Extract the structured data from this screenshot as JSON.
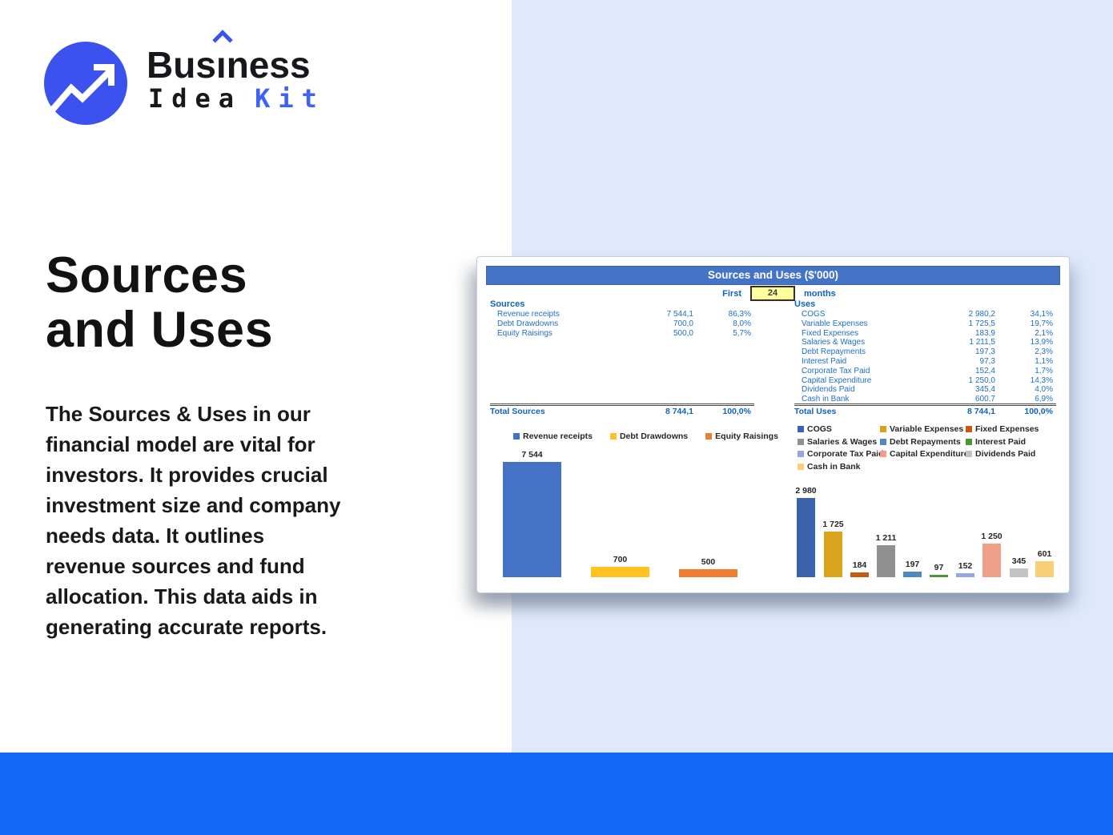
{
  "logo": {
    "icon": "trend-arrow-icon",
    "brand_pre": "Bus",
    "brand_i": "ı",
    "brand_post": "ness",
    "brand_line2_black": "Idea",
    "brand_line2_blue": "Kit"
  },
  "colors": {
    "logo_blue": "#3b52ef",
    "panel_blue": "#dfe9fb",
    "bottom_bar_blue": "#1368f7",
    "sheet_header_blue": "#4573c6",
    "input_cell_yellow": "#ffff9c",
    "table_text_blue": "#1e6fc4"
  },
  "hero": {
    "title_line1": "Sources",
    "title_line2": "and Uses",
    "description_lines": [
      "The Sources & Uses in our",
      "financial model are vital for",
      "investors. It provides crucial",
      "investment size and company",
      "needs data. It outlines",
      "revenue sources and fund",
      "allocation. This data aids in",
      "generating accurate reports."
    ]
  },
  "sheet": {
    "title": "Sources and Uses ($'000)",
    "period": {
      "prefix": "First",
      "value": "24",
      "suffix": "months"
    },
    "sources": {
      "header": "Sources",
      "rows": [
        {
          "label": "Revenue receipts",
          "value": "7 544,1",
          "pct": "86,3%"
        },
        {
          "label": "Debt Drawdowns",
          "value": "700,0",
          "pct": "8,0%"
        },
        {
          "label": "Equity Raisings",
          "value": "500,0",
          "pct": "5,7%"
        }
      ],
      "total": {
        "label": "Total Sources",
        "value": "8 744,1",
        "pct": "100,0%"
      }
    },
    "uses": {
      "header": "Uses",
      "rows": [
        {
          "label": "COGS",
          "value": "2 980,2",
          "pct": "34,1%"
        },
        {
          "label": "Variable Expenses",
          "value": "1 725,5",
          "pct": "19,7%"
        },
        {
          "label": "Fixed Expenses",
          "value": "183,9",
          "pct": "2,1%"
        },
        {
          "label": "Salaries & Wages",
          "value": "1 211,5",
          "pct": "13,9%"
        },
        {
          "label": "Debt Repayments",
          "value": "197,3",
          "pct": "2,3%"
        },
        {
          "label": "Interest Paid",
          "value": "97,3",
          "pct": "1,1%"
        },
        {
          "label": "Corporate Tax Paid",
          "value": "152,4",
          "pct": "1,7%"
        },
        {
          "label": "Capital Expenditure",
          "value": "1 250,0",
          "pct": "14,3%"
        },
        {
          "label": "Dividends Paid",
          "value": "345,4",
          "pct": "4,0%"
        },
        {
          "label": "Cash in Bank",
          "value": "600,7",
          "pct": "6,9%"
        }
      ],
      "total": {
        "label": "Total Uses",
        "value": "8 744,1",
        "pct": "100,0%"
      }
    }
  },
  "chart_data": [
    {
      "type": "bar",
      "title": "Sources",
      "categories": [
        "Revenue receipts",
        "Debt Drawdowns",
        "Equity Raisings"
      ],
      "values": [
        7544,
        700,
        500
      ],
      "labels": [
        "7 544",
        "700",
        "500"
      ],
      "colors": [
        "#4472c4",
        "#ffc220",
        "#ed7d31"
      ],
      "xlabel": "",
      "ylabel": "",
      "ylim": [
        0,
        7544
      ],
      "grid": false,
      "legend_position": "top"
    },
    {
      "type": "bar",
      "title": "Uses",
      "categories": [
        "COGS",
        "Variable Expenses",
        "Fixed Expenses",
        "Salaries & Wages",
        "Debt Repayments",
        "Interest Paid",
        "Corporate Tax Paid",
        "Capital Expenditure",
        "Dividends Paid",
        "Cash in Bank"
      ],
      "values": [
        2980,
        1725,
        184,
        1211,
        197,
        97,
        152,
        1250,
        345,
        601
      ],
      "labels": [
        "2 980",
        "1 725",
        "184",
        "1 211",
        "197",
        "97",
        "152",
        "1 250",
        "345",
        "601"
      ],
      "colors": [
        "#3a62ad",
        "#d9a41c",
        "#c55a11",
        "#8f8f8f",
        "#4e8abf",
        "#4f9436",
        "#95a7db",
        "#f0a088",
        "#c3c3c3",
        "#f8ce79"
      ],
      "xlabel": "",
      "ylabel": "",
      "ylim": [
        0,
        2980
      ],
      "grid": false,
      "legend_position": "top"
    }
  ]
}
